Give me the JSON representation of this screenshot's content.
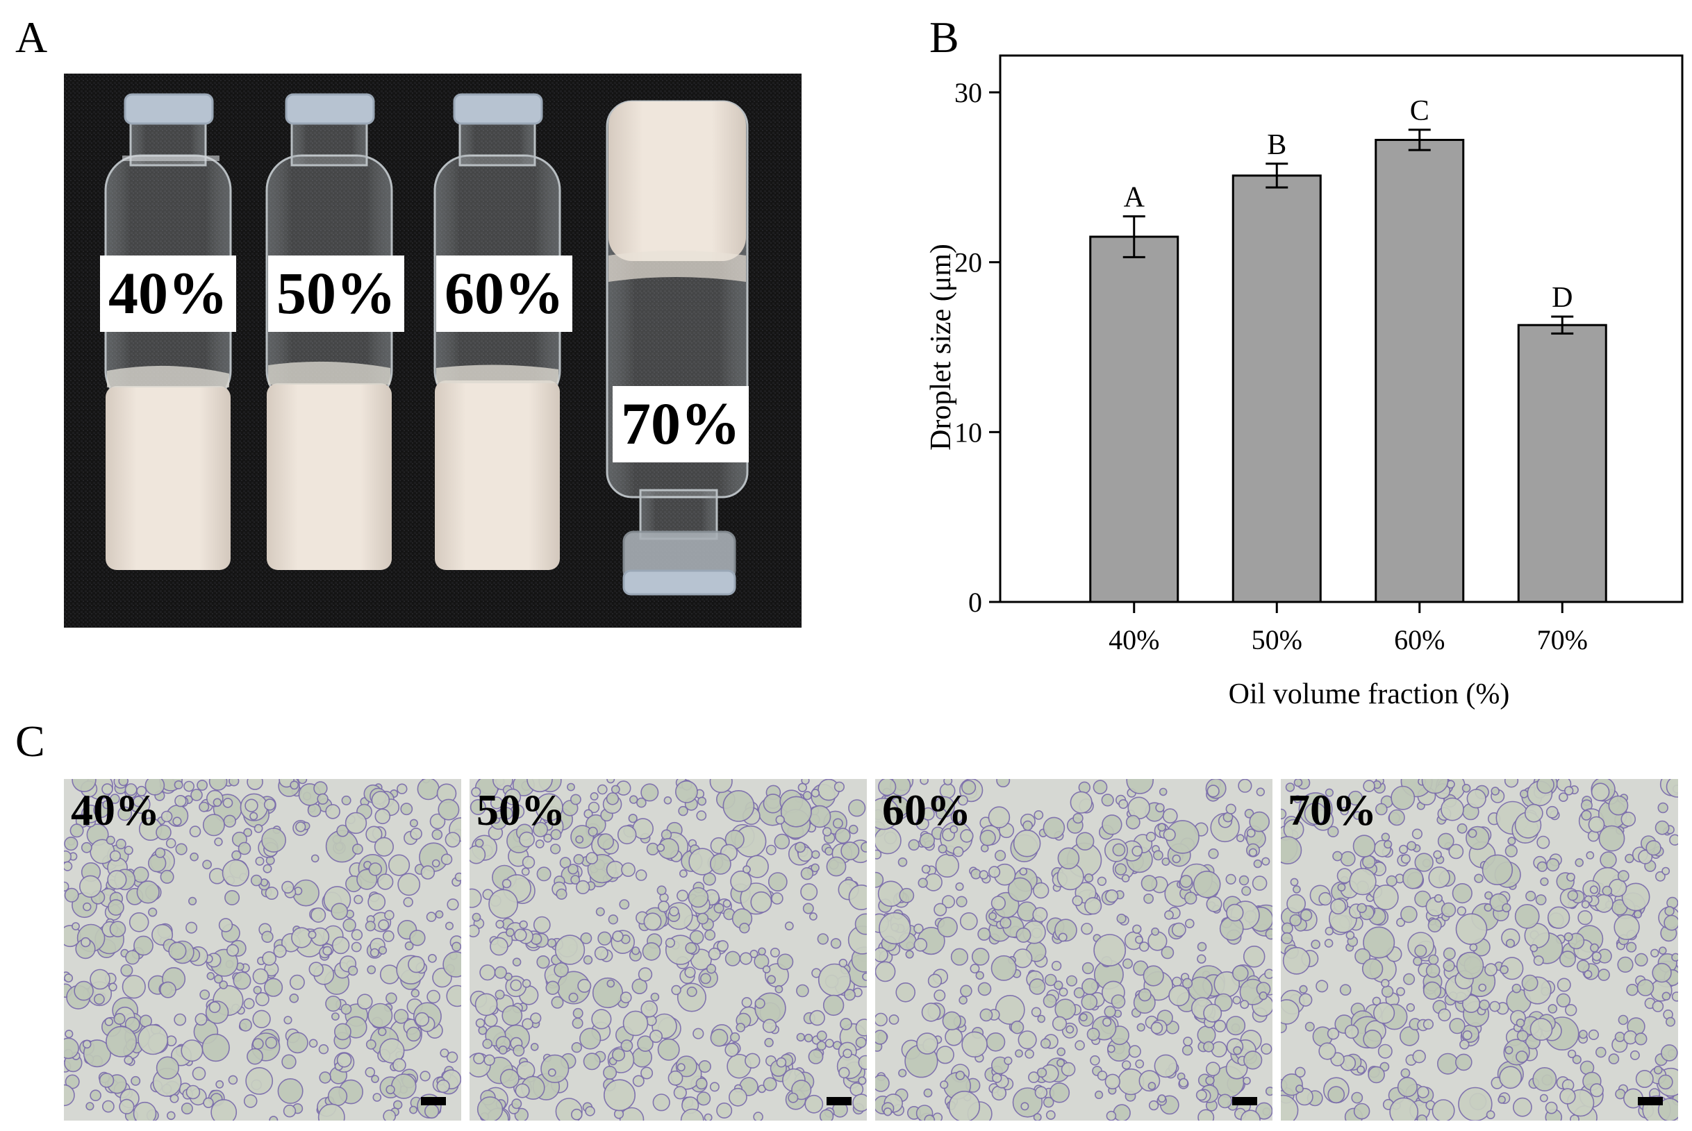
{
  "panels": {
    "a": {
      "letter": "A",
      "vial_labels": [
        "40%",
        "50%",
        "60%",
        "70%"
      ]
    },
    "b": {
      "letter": "B"
    },
    "c": {
      "letter": "C",
      "image_labels": [
        "40%",
        "50%",
        "60%",
        "70%"
      ]
    }
  },
  "colors": {
    "bar_fill": "#a0a0a0",
    "photo_background": "#131313",
    "emulsion": "#ece3d9",
    "vial_cap": "#b5c2d0",
    "micro_background": "#d6d8d3",
    "droplet_edge": "#7a6cab"
  },
  "chart_data": {
    "type": "bar",
    "categories": [
      "40%",
      "50%",
      "60%",
      "70%"
    ],
    "values": [
      21.5,
      25.1,
      27.2,
      16.3
    ],
    "errors": [
      1.2,
      0.7,
      0.6,
      0.5
    ],
    "significance_letters": [
      "A",
      "B",
      "C",
      "D"
    ],
    "xlabel": "Oil volume fraction (%)",
    "ylabel": "Droplet size (μm)",
    "ylim": [
      0,
      30
    ],
    "yticks": [
      "0",
      "10",
      "20",
      "30"
    ],
    "grid": false,
    "legend": "none"
  }
}
